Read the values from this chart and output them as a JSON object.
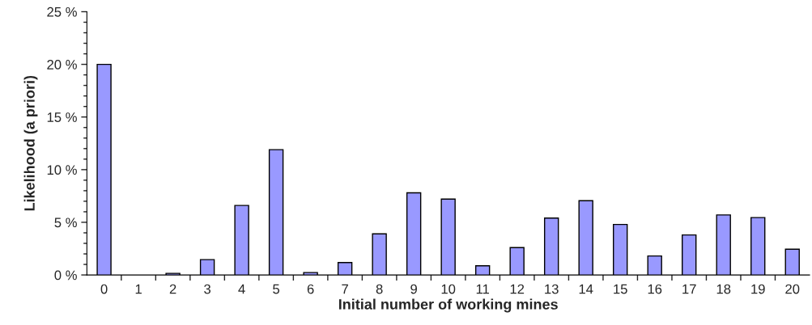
{
  "chart_data": {
    "type": "bar",
    "xlabel": "Initial number of working mines",
    "ylabel": "Likelihood (a priori)",
    "categories": [
      "0",
      "1",
      "2",
      "3",
      "4",
      "5",
      "6",
      "7",
      "8",
      "9",
      "10",
      "11",
      "12",
      "13",
      "14",
      "15",
      "16",
      "17",
      "18",
      "19",
      "20"
    ],
    "values": [
      20.0,
      null,
      0.15,
      1.46,
      6.6,
      11.9,
      0.23,
      1.18,
      3.9,
      7.8,
      7.2,
      0.87,
      2.6,
      5.4,
      7.05,
      4.8,
      1.8,
      3.8,
      5.7,
      5.45,
      2.45
    ],
    "color": "#9999ff",
    "ylim": [
      0,
      25
    ],
    "yticks": [
      {
        "value": 0,
        "label": "0 %"
      },
      {
        "value": 1,
        "label": null
      },
      {
        "value": 2,
        "label": null
      },
      {
        "value": 3,
        "label": null
      },
      {
        "value": 4,
        "label": null
      },
      {
        "value": 5,
        "label": "5 %"
      },
      {
        "value": 6,
        "label": null
      },
      {
        "value": 7,
        "label": null
      },
      {
        "value": 8,
        "label": null
      },
      {
        "value": 9,
        "label": null
      },
      {
        "value": 10,
        "label": "10 %"
      },
      {
        "value": 11,
        "label": null
      },
      {
        "value": 12,
        "label": null
      },
      {
        "value": 13,
        "label": null
      },
      {
        "value": 14,
        "label": null
      },
      {
        "value": 15,
        "label": "15 %"
      },
      {
        "value": 16,
        "label": null
      },
      {
        "value": 17,
        "label": null
      },
      {
        "value": 18,
        "label": null
      },
      {
        "value": 19,
        "label": null
      },
      {
        "value": 20,
        "label": "20 %"
      },
      {
        "value": 21,
        "label": null
      },
      {
        "value": 22,
        "label": null
      },
      {
        "value": 23,
        "label": null
      },
      {
        "value": 24,
        "label": null
      },
      {
        "value": 25,
        "label": "25 %"
      }
    ],
    "grid": false,
    "legend": false
  }
}
